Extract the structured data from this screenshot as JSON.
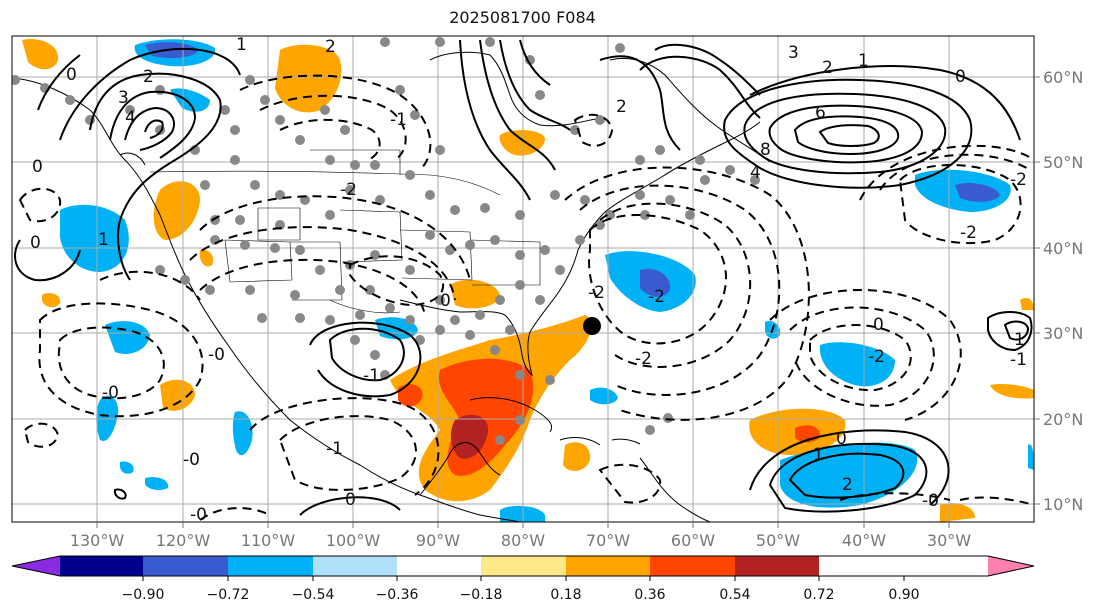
{
  "title": "2025081700 F084",
  "longitude_labels": [
    "130°W",
    "120°W",
    "110°W",
    "100°W",
    "90°W",
    "80°W",
    "70°W",
    "60°W",
    "50°W",
    "40°W",
    "30°W"
  ],
  "latitude_labels": [
    "60°N",
    "50°N",
    "40°N",
    "30°N",
    "20°N",
    "10°N"
  ],
  "colorbar": {
    "tick_labels": [
      "−0.90",
      "−0.72",
      "−0.54",
      "−0.36",
      "−0.18",
      "0.18",
      "0.36",
      "0.54",
      "0.72",
      "0.90"
    ],
    "colors": [
      "#8a2be2",
      "#00008b",
      "#3a5bd0",
      "#00b2f5",
      "#b0e0fa",
      "#ffffff",
      "#ffe88a",
      "#ffa500",
      "#ff4500",
      "#b22222",
      "#ff7fb0"
    ]
  },
  "contour_labels": [
    "1",
    "2",
    "2",
    "3",
    "4",
    "1",
    "0",
    "0",
    "0",
    "0",
    "-1",
    "-1",
    "-2",
    "-2",
    "2",
    "6",
    "8",
    "4",
    "3",
    "2",
    "1",
    "0",
    "-0",
    "-0",
    "-0",
    "0",
    "-2",
    "-2",
    "-2",
    "-2",
    "1",
    "2",
    "-1",
    "-0",
    "-0",
    "0",
    "-2",
    "1",
    "-1",
    "0"
  ],
  "colors": {
    "axis": "#777777",
    "grid": "#aaaaaa",
    "coast": "#000000",
    "dot": "#888888",
    "marker": "#000000"
  }
}
